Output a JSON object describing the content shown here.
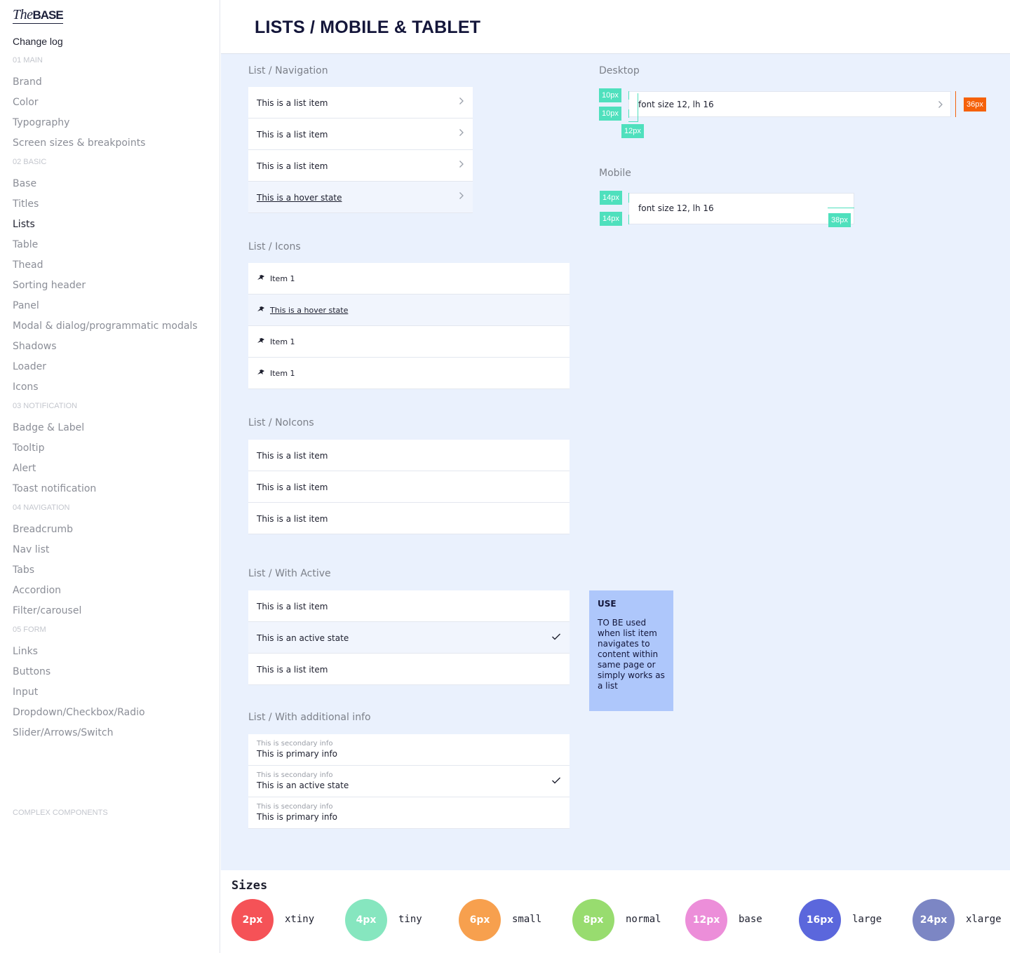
{
  "sidebar": {
    "logo": {
      "the": "The",
      "base": "BASE"
    },
    "change_log": "Change log",
    "sections": [
      {
        "title": "01 MAIN",
        "items": [
          "Brand",
          "Color",
          "Typography",
          "Screen sizes & breakpoints"
        ]
      },
      {
        "title": "02 BASIC",
        "items": [
          "Base",
          "Titles",
          "Lists",
          "Table",
          "Thead",
          "Sorting header",
          "Panel",
          "Modal & dialog/programmatic modals",
          "Shadows",
          "Loader",
          "Icons"
        ]
      },
      {
        "title": "03 NOTIFICATION",
        "items": [
          "Badge & Label",
          "Tooltip",
          "Alert",
          "Toast notification"
        ]
      },
      {
        "title": "04 NAVIGATION",
        "items": [
          "Breadcrumb",
          "Nav list",
          "Tabs",
          "Accordion",
          "Filter/carousel"
        ]
      },
      {
        "title": "05 FORM",
        "items": [
          "Links",
          "Buttons",
          "Input",
          "Dropdown/Checkbox/Radio",
          "Slider/Arrows/Switch"
        ]
      },
      {
        "title": "COMPLEX COMPONENTS",
        "items": []
      }
    ],
    "active_item": "Lists"
  },
  "header": {
    "title": "LISTS / MOBILE & TABLET"
  },
  "lists": {
    "navigation": {
      "title": "List / Navigation",
      "items": [
        "This is a list item",
        "This is a list item",
        "This is a list item",
        "This is a hover state"
      ]
    },
    "icons": {
      "title": "List / Icons",
      "items": [
        "Item 1",
        "This is a hover state",
        "Item 1",
        "Item 1"
      ]
    },
    "noicons": {
      "title": "List / NoIcons",
      "items": [
        "This is a list item",
        "This is a list item",
        "This is a list item"
      ]
    },
    "with_active": {
      "title": "List / With Active",
      "items": [
        "This is a list item",
        "This is an active state",
        "This is a list item"
      ]
    },
    "additional": {
      "title": "List / With additional info",
      "items": [
        {
          "secondary": "This is secondary info",
          "primary": "This is primary info"
        },
        {
          "secondary": "This is secondary info",
          "primary": "This is an active state"
        },
        {
          "secondary": "This is secondary info",
          "primary": "This is primary info"
        }
      ]
    }
  },
  "spec": {
    "desktop": {
      "title": "Desktop",
      "text": "font size 12, lh 16",
      "tags": [
        "10px",
        "10px",
        "12px",
        "36px"
      ]
    },
    "mobile": {
      "title": "Mobile",
      "text": "font size 12, lh 16",
      "tags": [
        "14px",
        "14px",
        "38px"
      ]
    }
  },
  "use_note": {
    "title": "USE",
    "text": "TO BE used when list item navigates to content within same page or simply works as a list"
  },
  "sizes": {
    "title": "Sizes",
    "items": [
      {
        "value": "2px",
        "name": "xtiny",
        "color": "#f55257"
      },
      {
        "value": "4px",
        "name": "tiny",
        "color": "#86e6bf"
      },
      {
        "value": "6px",
        "name": "small",
        "color": "#f7a04e"
      },
      {
        "value": "8px",
        "name": "normal",
        "color": "#98dc6f"
      },
      {
        "value": "12px",
        "name": "base",
        "color": "#ec8ed9"
      },
      {
        "value": "16px",
        "name": "large",
        "color": "#5b67dc"
      },
      {
        "value": "24px",
        "name": "xlarge",
        "color": "#7c86c4"
      }
    ]
  },
  "colors": {
    "accent": "#4fe0bd",
    "warning_tag": "#f5610a",
    "content_bg": "#eaf1fd",
    "note_bg": "#aec7fb"
  }
}
